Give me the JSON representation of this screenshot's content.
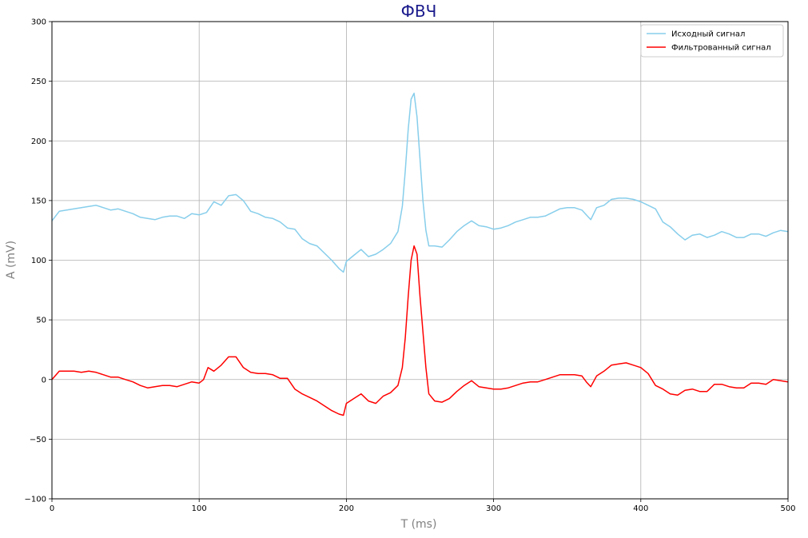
{
  "chart_data": {
    "type": "line",
    "title": "ФВЧ",
    "xlabel": "T (ms)",
    "ylabel": "A (mV)",
    "xlim": [
      0,
      500
    ],
    "ylim": [
      -100,
      300
    ],
    "xticks": [
      0,
      100,
      200,
      300,
      400,
      500
    ],
    "yticks": [
      -100,
      -50,
      0,
      50,
      100,
      150,
      200,
      250,
      300
    ],
    "grid": true,
    "legend_position": "top-right",
    "series": [
      {
        "name": "Исходный сигнал",
        "color": "#87CEEB",
        "x": [
          0,
          5,
          10,
          15,
          20,
          25,
          30,
          35,
          40,
          45,
          50,
          55,
          60,
          65,
          70,
          75,
          80,
          85,
          90,
          95,
          100,
          105,
          110,
          115,
          120,
          125,
          130,
          135,
          140,
          145,
          150,
          155,
          160,
          165,
          170,
          175,
          180,
          185,
          190,
          195,
          198,
          200,
          205,
          210,
          215,
          220,
          225,
          230,
          235,
          238,
          240,
          242,
          244,
          246,
          248,
          250,
          252,
          254,
          256,
          260,
          265,
          270,
          275,
          280,
          285,
          290,
          295,
          300,
          305,
          310,
          315,
          320,
          325,
          330,
          335,
          340,
          345,
          350,
          355,
          360,
          363,
          366,
          370,
          375,
          380,
          385,
          390,
          395,
          400,
          405,
          410,
          415,
          420,
          425,
          430,
          435,
          440,
          445,
          450,
          455,
          460,
          465,
          470,
          475,
          480,
          485,
          490,
          495,
          500
        ],
        "values": [
          133,
          141,
          142,
          143,
          144,
          145,
          146,
          144,
          142,
          143,
          141,
          139,
          136,
          135,
          134,
          136,
          137,
          137,
          135,
          139,
          138,
          140,
          149,
          146,
          154,
          155,
          150,
          141,
          139,
          136,
          135,
          132,
          127,
          126,
          118,
          114,
          112,
          106,
          100,
          93,
          90,
          99,
          104,
          109,
          103,
          105,
          109,
          114,
          124,
          145,
          175,
          210,
          235,
          240,
          220,
          185,
          150,
          125,
          112,
          112,
          111,
          117,
          124,
          129,
          133,
          129,
          128,
          126,
          127,
          129,
          132,
          134,
          136,
          136,
          137,
          140,
          143,
          144,
          144,
          142,
          138,
          134,
          144,
          146,
          151,
          152,
          152,
          151,
          149,
          146,
          143,
          132,
          128,
          122,
          117,
          121,
          122,
          119,
          121,
          124,
          122,
          119,
          119,
          122,
          122,
          120,
          123,
          125,
          124
        ]
      },
      {
        "name": "Фильтрованный сигнал",
        "color": "#FF0000",
        "x": [
          0,
          5,
          10,
          15,
          20,
          25,
          30,
          35,
          40,
          45,
          50,
          55,
          60,
          65,
          70,
          75,
          80,
          85,
          90,
          95,
          100,
          103,
          106,
          110,
          115,
          120,
          125,
          130,
          135,
          140,
          145,
          150,
          155,
          160,
          165,
          170,
          175,
          180,
          185,
          190,
          195,
          198,
          200,
          205,
          210,
          215,
          220,
          225,
          230,
          235,
          238,
          240,
          242,
          244,
          246,
          248,
          250,
          252,
          254,
          256,
          260,
          265,
          270,
          275,
          280,
          285,
          290,
          295,
          300,
          305,
          310,
          315,
          320,
          325,
          330,
          335,
          340,
          345,
          350,
          355,
          360,
          363,
          366,
          370,
          375,
          380,
          385,
          390,
          395,
          400,
          405,
          410,
          415,
          420,
          425,
          430,
          435,
          440,
          445,
          450,
          455,
          460,
          465,
          470,
          475,
          480,
          485,
          490,
          495,
          500
        ],
        "values": [
          0,
          7,
          7,
          7,
          6,
          7,
          6,
          4,
          2,
          2,
          0,
          -2,
          -5,
          -7,
          -6,
          -5,
          -5,
          -6,
          -4,
          -2,
          -3,
          0,
          10,
          7,
          12,
          19,
          19,
          10,
          6,
          5,
          5,
          4,
          1,
          1,
          -8,
          -12,
          -15,
          -18,
          -22,
          -26,
          -29,
          -30,
          -20,
          -16,
          -12,
          -18,
          -20,
          -14,
          -11,
          -5,
          10,
          35,
          70,
          100,
          112,
          105,
          70,
          40,
          10,
          -12,
          -18,
          -19,
          -16,
          -10,
          -5,
          -1,
          -6,
          -7,
          -8,
          -8,
          -7,
          -5,
          -3,
          -2,
          -2,
          0,
          2,
          4,
          4,
          4,
          3,
          -2,
          -6,
          3,
          7,
          12,
          13,
          14,
          12,
          10,
          5,
          -5,
          -8,
          -12,
          -13,
          -9,
          -8,
          -10,
          -10,
          -4,
          -4,
          -6,
          -7,
          -7,
          -3,
          -3,
          -4,
          0,
          -1,
          -2
        ]
      }
    ]
  }
}
